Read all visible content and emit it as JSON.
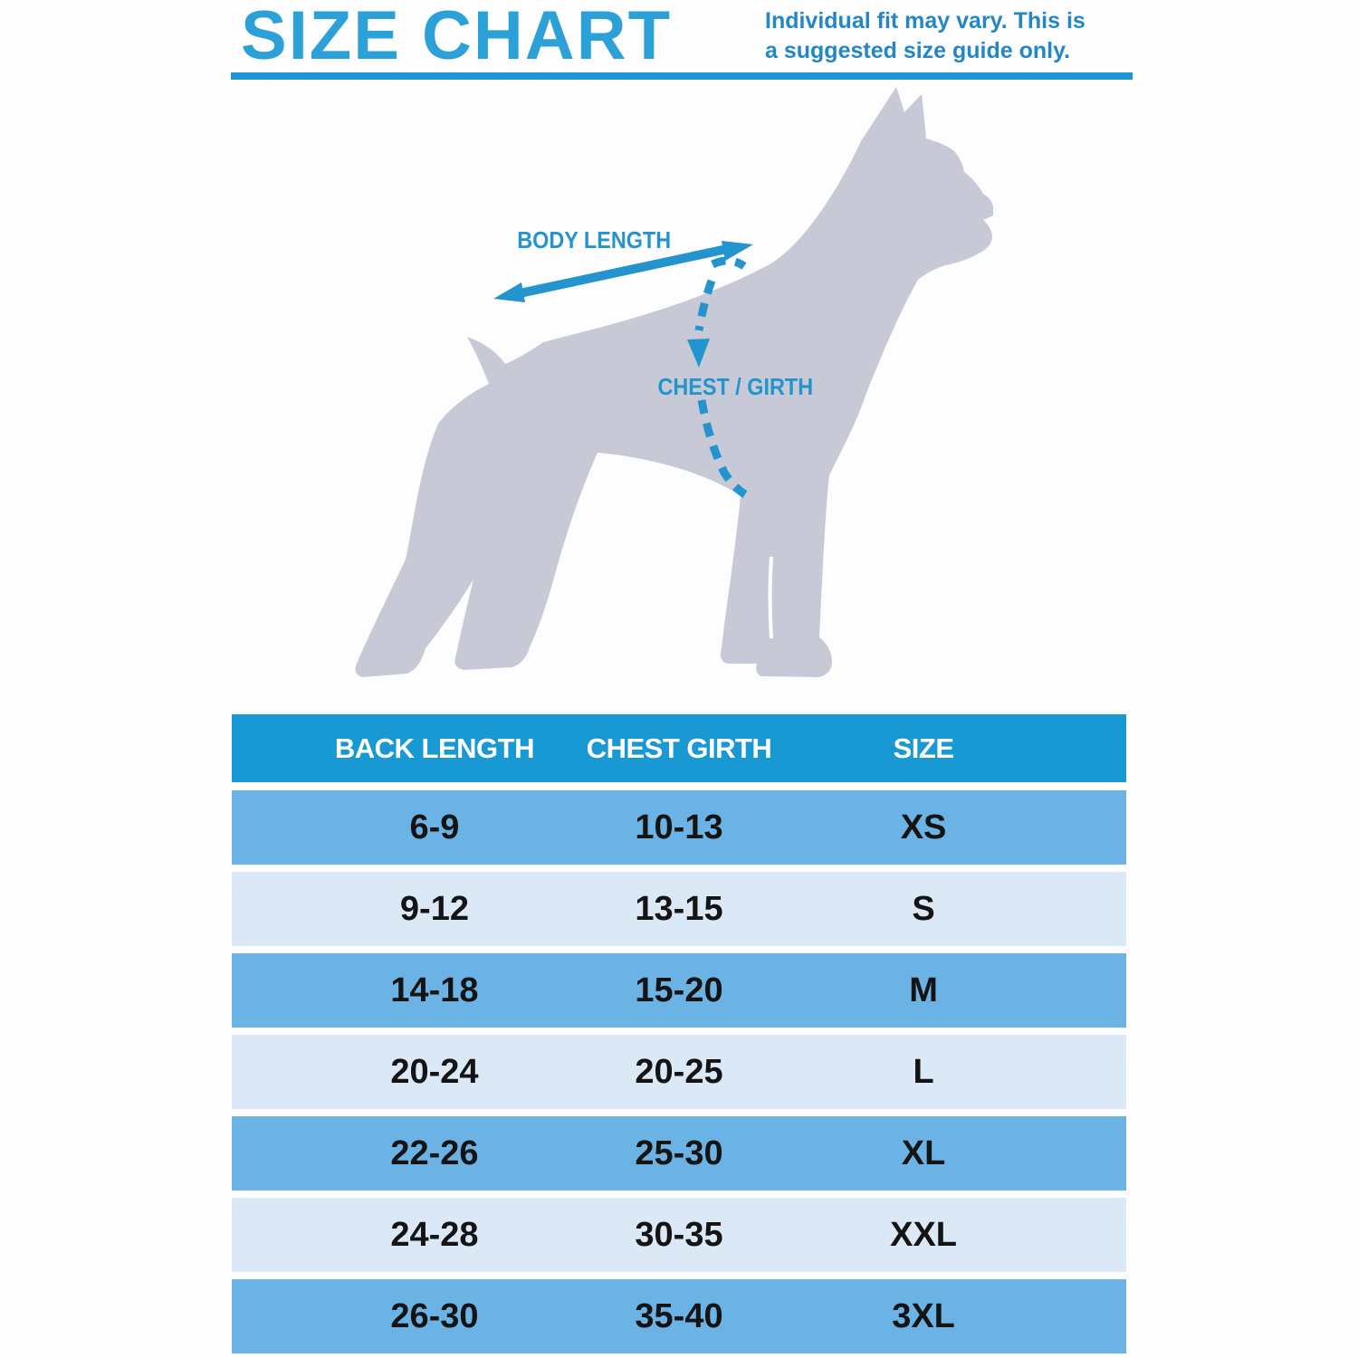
{
  "header": {
    "title": "SIZE CHART",
    "subtitle_line1": "Individual fit may vary. This is",
    "subtitle_line2": "a suggested size guide only."
  },
  "diagram": {
    "body_length_label": "BODY LENGTH",
    "chest_girth_label": "CHEST / GIRTH"
  },
  "chart_data": {
    "type": "table",
    "title": "SIZE CHART",
    "columns": [
      "BACK LENGTH",
      "CHEST GIRTH",
      "SIZE"
    ],
    "rows": [
      [
        "6-9",
        "10-13",
        "XS"
      ],
      [
        "9-12",
        "13-15",
        "S"
      ],
      [
        "14-18",
        "15-20",
        "M"
      ],
      [
        "20-24",
        "20-25",
        "L"
      ],
      [
        "22-26",
        "25-30",
        "XL"
      ],
      [
        "24-28",
        "30-35",
        "XXL"
      ],
      [
        "26-30",
        "35-40",
        "3XL"
      ]
    ],
    "row_shading": [
      "medium",
      "light",
      "medium",
      "light",
      "medium",
      "light",
      "medium"
    ]
  },
  "colors": {
    "page_bg": "#fdfdfe",
    "title_blue": "#2ba1d8",
    "subtitle_blue": "#2386c5",
    "rule_blue": "#2095d3",
    "annotation_blue": "#2494ce",
    "dog_gray": "#c7c9d6",
    "table_header_bg": "#1999d3",
    "table_header_text": "#ffffff",
    "table_cell_text": "#141414",
    "row_medium": "#6bb3e5",
    "row_light": "#dbe9f6"
  }
}
